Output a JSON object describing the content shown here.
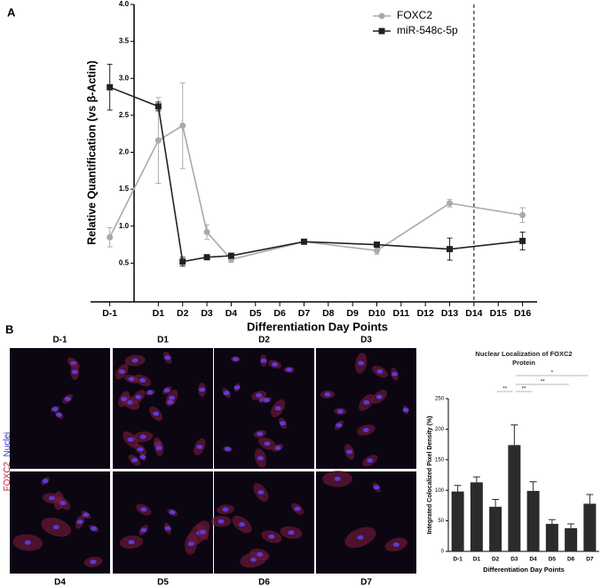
{
  "panel_a": "A",
  "panel_b": "B",
  "chart_data": [
    {
      "type": "line",
      "x": [
        -1,
        1,
        2,
        3,
        4,
        7,
        10,
        13,
        16
      ],
      "xlim": [
        -1.5,
        16.6
      ],
      "xticks": [
        {
          "value": -1,
          "label": "D-1"
        },
        {
          "value": 1,
          "label": "D1"
        },
        {
          "value": 2,
          "label": "D2"
        },
        {
          "value": 3,
          "label": "D3"
        },
        {
          "value": 4,
          "label": "D4"
        },
        {
          "value": 5,
          "label": "D5"
        },
        {
          "value": 6,
          "label": "D6"
        },
        {
          "value": 7,
          "label": "D7"
        },
        {
          "value": 8,
          "label": "D8"
        },
        {
          "value": 9,
          "label": "D9"
        },
        {
          "value": 10,
          "label": "D10"
        },
        {
          "value": 11,
          "label": "D11"
        },
        {
          "value": 12,
          "label": "D12"
        },
        {
          "value": 13,
          "label": "D13"
        },
        {
          "value": 14,
          "label": "D14"
        },
        {
          "value": 15,
          "label": "D15"
        },
        {
          "value": 16,
          "label": "D16"
        }
      ],
      "ylim": [
        0,
        4
      ],
      "yticks": [
        0.5,
        {
          "value": 1,
          "label": "1.0"
        },
        1.5,
        {
          "value": 2,
          "label": "2.0"
        },
        2.5,
        {
          "value": 3,
          "label": "3.0"
        },
        3.5,
        {
          "value": 4,
          "label": "4.0"
        }
      ],
      "xlabel": "Differentiation Day Points",
      "ylabel": "Relative Quantification (vs β-Actin)",
      "legend": "top-right",
      "reference_line_x": 14,
      "series": [
        {
          "name": "FOXC2",
          "color": "#aaaaaa",
          "marker": "circle",
          "values": [
            0.85,
            2.16,
            2.36,
            0.92,
            0.55,
            0.79,
            0.67,
            1.31,
            1.15
          ],
          "errors": [
            0.13,
            0.58,
            0.58,
            0.1,
            0.04,
            0.03,
            0.05,
            0.05,
            0.1
          ]
        },
        {
          "name": "miR-548c-5p",
          "color": "#222222",
          "marker": "square",
          "values": [
            2.88,
            2.62,
            0.52,
            0.58,
            0.6,
            0.79,
            0.75,
            0.69,
            0.8
          ],
          "errors": [
            0.31,
            0.06,
            0.06,
            0.02,
            0.02,
            0.03,
            0.02,
            0.15,
            0.12
          ]
        }
      ]
    },
    {
      "type": "bar",
      "title": "Nuclear Localization of FOXC2 Protein",
      "categories": [
        "D-1",
        "D1",
        "D2",
        "D3",
        "D4",
        "D5",
        "D6",
        "D7"
      ],
      "values": [
        98,
        113,
        73,
        174,
        99,
        45,
        38,
        78
      ],
      "errors": [
        10,
        9,
        12,
        33,
        15,
        7,
        7,
        15
      ],
      "color": "#2b2b2b",
      "ylim": [
        0,
        250
      ],
      "yticks": [
        0,
        50,
        100,
        150,
        200,
        250
      ],
      "xlabel": "Differentiation Day Points",
      "ylabel": "Integrated Colocalized Pixel Density (%)",
      "significance": [
        {
          "from": "D2",
          "to": "D3",
          "label": "**"
        },
        {
          "from": "D3",
          "to": "D4",
          "label": "**"
        },
        {
          "from": "D3",
          "to": "D6",
          "label": "**"
        },
        {
          "from": "D3",
          "to": "D7",
          "label": "*"
        }
      ]
    }
  ],
  "images": {
    "top_labels": [
      "D-1",
      "D1",
      "D2",
      "D3"
    ],
    "bottom_labels": [
      "D4",
      "D5",
      "D6",
      "D7"
    ],
    "stain_label": {
      "protein": "FOXC2",
      "nuclei": "_Nuclei"
    }
  }
}
